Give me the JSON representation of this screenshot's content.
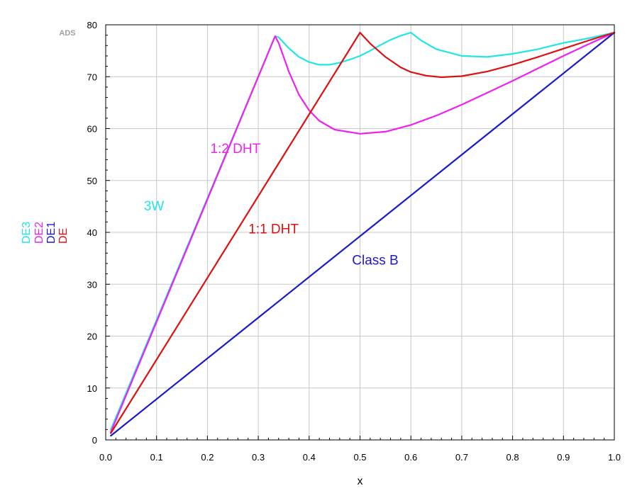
{
  "watermark": "ADS",
  "chart_data": {
    "type": "line",
    "xlabel": "x",
    "xlim": [
      0.0,
      1.0
    ],
    "ylim": [
      0,
      80
    ],
    "x_ticks": [
      0.0,
      0.1,
      0.2,
      0.3,
      0.4,
      0.5,
      0.6,
      0.7,
      0.8,
      0.9,
      1.0
    ],
    "x_tick_labels": [
      "0.0",
      "0.1",
      "0.2",
      "0.3",
      "0.4",
      "0.5",
      "0.6",
      "0.7",
      "0.8",
      "0.9",
      "1.0"
    ],
    "y_ticks": [
      0,
      10,
      20,
      30,
      40,
      50,
      60,
      70,
      80
    ],
    "y_tick_labels": [
      "0",
      "10",
      "20",
      "30",
      "40",
      "50",
      "60",
      "70",
      "80"
    ],
    "grid": true,
    "legend_placement": "left, vertical text",
    "series": [
      {
        "name": "DE3",
        "color": "#22e5e5",
        "x": [
          0.01,
          0.333,
          0.34,
          0.36,
          0.38,
          0.4,
          0.42,
          0.44,
          0.46,
          0.48,
          0.5,
          0.52,
          0.54,
          0.56,
          0.58,
          0.6,
          0.62,
          0.65,
          0.7,
          0.75,
          0.8,
          0.85,
          0.9,
          0.95,
          1.0
        ],
        "y": [
          2.0,
          77.8,
          77.6,
          75.5,
          73.8,
          72.8,
          72.3,
          72.3,
          72.7,
          73.3,
          74.0,
          75.0,
          76.1,
          77.1,
          77.9,
          78.5,
          77.0,
          75.3,
          74.0,
          73.8,
          74.4,
          75.3,
          76.5,
          77.4,
          78.5
        ]
      },
      {
        "name": "DE2",
        "color": "#ee22ee",
        "x": [
          0.01,
          0.333,
          0.34,
          0.36,
          0.38,
          0.4,
          0.42,
          0.45,
          0.5,
          0.55,
          0.6,
          0.65,
          0.7,
          0.75,
          0.8,
          0.85,
          0.9,
          0.95,
          1.0
        ],
        "y": [
          1.5,
          77.8,
          76.5,
          71.0,
          66.5,
          63.5,
          61.5,
          59.8,
          59.0,
          59.4,
          60.7,
          62.5,
          64.6,
          66.9,
          69.2,
          71.6,
          74.0,
          76.3,
          78.5
        ]
      },
      {
        "name": "DE1",
        "color": "#1a1acc",
        "x": [
          0.01,
          1.0
        ],
        "y": [
          0.8,
          78.5
        ]
      },
      {
        "name": "DE",
        "color": "#dd1111",
        "x": [
          0.01,
          0.5,
          0.52,
          0.55,
          0.58,
          0.6,
          0.63,
          0.66,
          0.7,
          0.75,
          0.8,
          0.85,
          0.9,
          0.95,
          1.0
        ],
        "y": [
          1.3,
          78.5,
          76.4,
          73.8,
          71.8,
          70.9,
          70.2,
          69.9,
          70.1,
          71.0,
          72.3,
          73.8,
          75.4,
          77.0,
          78.5
        ]
      }
    ],
    "annotations": [
      {
        "text": "3W",
        "x": 0.095,
        "y": 44.2,
        "color": "#22e5e5"
      },
      {
        "text": "1:2 DHT",
        "x": 0.255,
        "y": 55.3,
        "color": "#ee22ee"
      },
      {
        "text": "1:1 DHT",
        "x": 0.33,
        "y": 39.8,
        "color": "#dd1111"
      },
      {
        "text": "Class B",
        "x": 0.53,
        "y": 33.8,
        "color": "#1a1acc"
      }
    ]
  }
}
